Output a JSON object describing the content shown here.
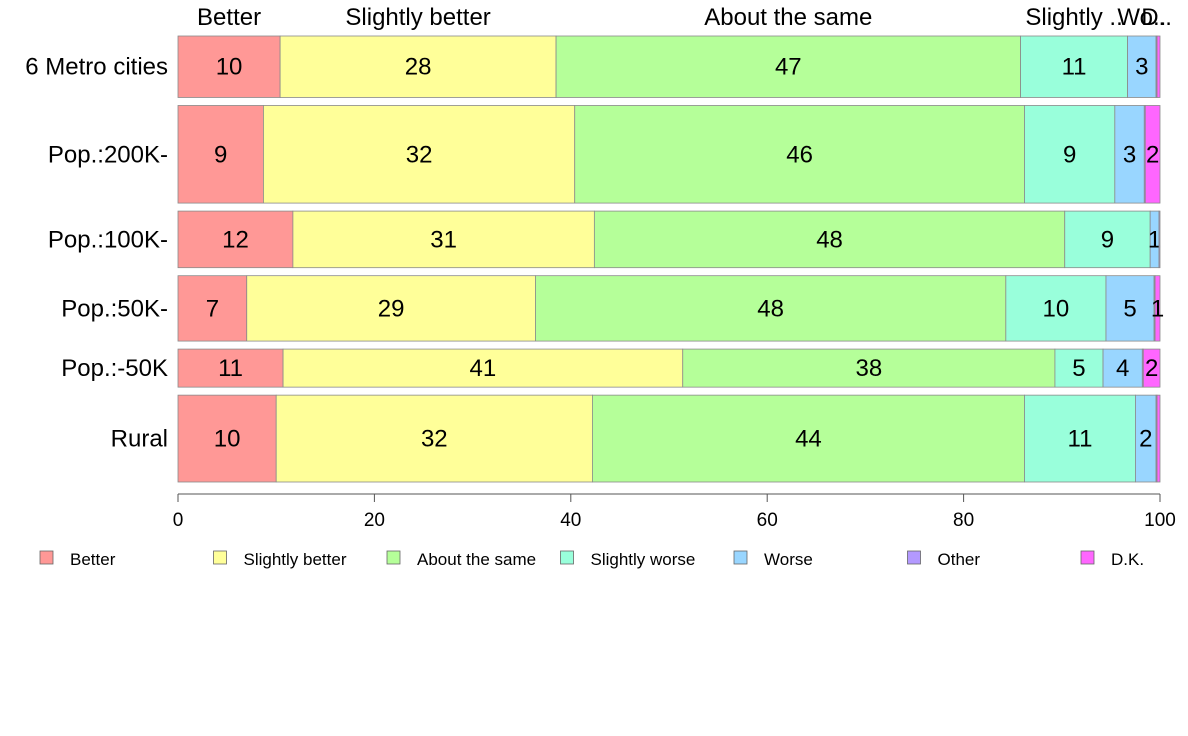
{
  "chart_data": {
    "type": "bar",
    "orientation": "horizontal",
    "stacked": true,
    "categories": [
      "6 Metro cities",
      "Pop.:200K-",
      "Pop.:100K-",
      "Pop.:50K-",
      "Pop.:-50K",
      "Rural"
    ],
    "category_weights": [
      0.63,
      1.0,
      0.58,
      0.67,
      0.39,
      0.89
    ],
    "top_labels": [
      "Better",
      "Slightly better",
      "About the same",
      "Slightly ..",
      "Wo..",
      "D.."
    ],
    "series": [
      {
        "name": "Better",
        "color": "#ff9896",
        "values": [
          10.4,
          8.7,
          11.7,
          7.0,
          10.7,
          10.0
        ],
        "labels": [
          "10",
          "9",
          "12",
          "7",
          "11",
          "10"
        ]
      },
      {
        "name": "Slightly better",
        "color": "#ffff99",
        "values": [
          28.1,
          31.7,
          30.7,
          29.4,
          40.7,
          32.2
        ],
        "labels": [
          "28",
          "32",
          "31",
          "29",
          "41",
          "32"
        ]
      },
      {
        "name": "About the same",
        "color": "#b5ff99",
        "values": [
          47.3,
          45.8,
          47.9,
          47.9,
          37.9,
          44.0
        ],
        "labels": [
          "47",
          "46",
          "48",
          "48",
          "38",
          "44"
        ]
      },
      {
        "name": "Slightly worse",
        "color": "#99ffdb",
        "values": [
          10.9,
          9.2,
          8.7,
          10.2,
          4.9,
          11.3
        ],
        "labels": [
          "11",
          "9",
          "9",
          "10",
          "5",
          "11"
        ]
      },
      {
        "name": "Worse",
        "color": "#99d6ff",
        "values": [
          2.9,
          3.0,
          0.9,
          4.9,
          4.0,
          2.1
        ],
        "labels": [
          "3",
          "3",
          "1",
          "5",
          "4",
          "2"
        ]
      },
      {
        "name": "Other",
        "color": "#b399ff",
        "values": [
          0.1,
          0.1,
          0.1,
          0.1,
          0.1,
          0.1
        ],
        "labels": [
          "",
          "",
          "",
          "",
          "",
          ""
        ]
      },
      {
        "name": "D.K.",
        "color": "#ff66ff",
        "values": [
          0.3,
          1.5,
          0.0,
          0.5,
          1.7,
          0.3
        ],
        "labels": [
          "",
          "2",
          "",
          "1",
          "2",
          ""
        ]
      }
    ],
    "xlim": [
      0,
      100
    ],
    "x_ticks": [
      0,
      20,
      40,
      60,
      80,
      100
    ],
    "legend": [
      "Better",
      "Slightly better",
      "About the same",
      "Slightly worse",
      "Worse",
      "Other",
      "D.K."
    ],
    "legend_position": "bottom",
    "grid": false
  }
}
